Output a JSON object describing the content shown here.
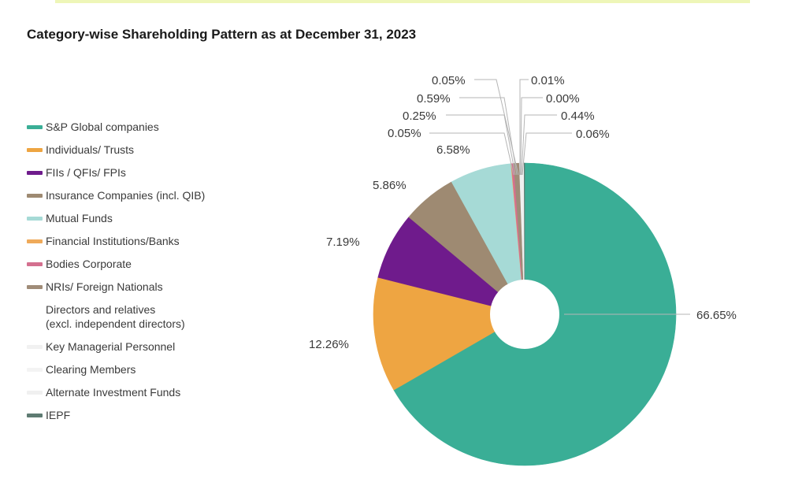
{
  "title": "Category-wise Shareholding Pattern as at December 31, 2023",
  "chart_data": {
    "type": "pie",
    "donut": true,
    "legend_position": "left",
    "slices": [
      {
        "label": "S&P Global companies",
        "value": 66.65,
        "value_label": "66.65%",
        "color": "#3aae96"
      },
      {
        "label": "Individuals/ Trusts",
        "value": 12.26,
        "value_label": "12.26%",
        "color": "#eea542"
      },
      {
        "label": "FIIs / QFIs/ FPIs",
        "value": 7.19,
        "value_label": "7.19%",
        "color": "#6f1b8c"
      },
      {
        "label": "Insurance Companies (incl. QIB)",
        "value": 5.86,
        "value_label": "5.86%",
        "color": "#9e8a72"
      },
      {
        "label": "Mutual Funds",
        "value": 6.58,
        "value_label": "6.58%",
        "color": "#a6dad6"
      },
      {
        "label": "Financial Institutions/Banks",
        "value": 0.05,
        "value_label": "0.05%",
        "color": "#efaa5a"
      },
      {
        "label": "Bodies Corporate",
        "value": 0.25,
        "value_label": "0.25%",
        "color": "#d4708f"
      },
      {
        "label": "NRIs/ Foreign Nationals",
        "value": 0.59,
        "value_label": "0.59%",
        "color": "#a08c78"
      },
      {
        "label": "Directors and relatives\n(excl. independent directors)",
        "value": 0.05,
        "value_label": "0.05%",
        "color": "#ffffff"
      },
      {
        "label": "Key Managerial Personnel",
        "value": 0.01,
        "value_label": "0.01%",
        "color": "#f1f1f1"
      },
      {
        "label": "Clearing Members",
        "value": 0.0,
        "value_label": "0.00%",
        "color": "#f3f3f3"
      },
      {
        "label": "Alternate Investment Funds",
        "value": 0.44,
        "value_label": "0.44%",
        "color": "#f0f0f0"
      },
      {
        "label": "IEPF",
        "value": 0.06,
        "value_label": "0.06%",
        "color": "#5e7b72"
      }
    ]
  }
}
